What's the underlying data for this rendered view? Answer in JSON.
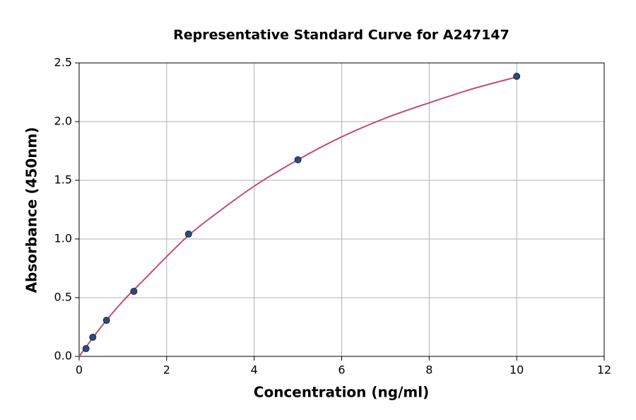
{
  "chart_data": {
    "type": "scatter",
    "title": "Representative Standard Curve for A247147",
    "x_label": "Concentration (ng/ml)",
    "y_label": "Absorbance (450nm)",
    "x": [
      0.156,
      0.312,
      0.625,
      1.25,
      2.5,
      5,
      10
    ],
    "values": [
      0.066,
      0.163,
      0.307,
      0.554,
      1.042,
      1.675,
      2.386
    ],
    "color": "#2e4a7a",
    "fit": {
      "x": [
        0,
        0.5,
        1,
        1.5,
        2,
        2.5,
        3,
        4,
        5,
        6,
        7,
        8,
        9,
        10
      ],
      "values": [
        0.0,
        0.25,
        0.47,
        0.66,
        0.85,
        1.03,
        1.18,
        1.45,
        1.675,
        1.87,
        2.03,
        2.16,
        2.28,
        2.38
      ],
      "color": "#c0506e"
    },
    "xlim": [
      0,
      12
    ],
    "xticks": [
      0,
      2,
      4,
      6,
      8,
      10,
      12
    ],
    "ylim": [
      0,
      2.5
    ],
    "yticks": [
      {
        "value": 0,
        "label": "0.0"
      },
      0.5,
      {
        "value": 1,
        "label": "1.0"
      },
      1.5,
      {
        "value": 2,
        "label": "2.0"
      },
      2.5
    ],
    "grid": true
  }
}
